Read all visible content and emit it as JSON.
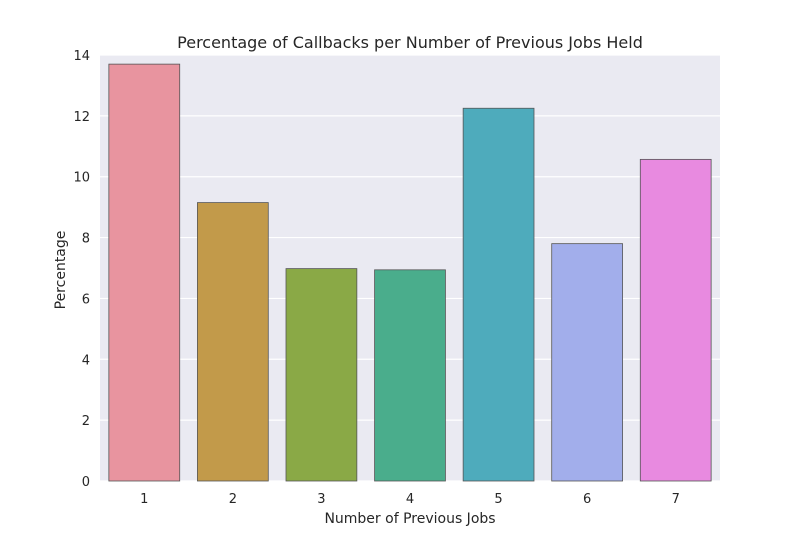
{
  "chart_data": {
    "type": "bar",
    "title": "Percentage of Callbacks per Number of Previous Jobs Held",
    "xlabel": "Number of Previous Jobs",
    "ylabel": "Percentage",
    "categories": [
      "1",
      "2",
      "3",
      "4",
      "5",
      "6",
      "7"
    ],
    "values": [
      13.7,
      9.15,
      6.98,
      6.94,
      12.25,
      7.8,
      10.57
    ],
    "colors": [
      "#e8949f",
      "#c29a4a",
      "#8aa946",
      "#4aad8c",
      "#4eabbc",
      "#a2aeeb",
      "#e88ae0"
    ],
    "ylim": [
      0,
      14
    ],
    "yticks": [
      "0",
      "2",
      "4",
      "6",
      "8",
      "10",
      "12",
      "14"
    ],
    "grid": true,
    "style": "seaborn-darkgrid"
  }
}
